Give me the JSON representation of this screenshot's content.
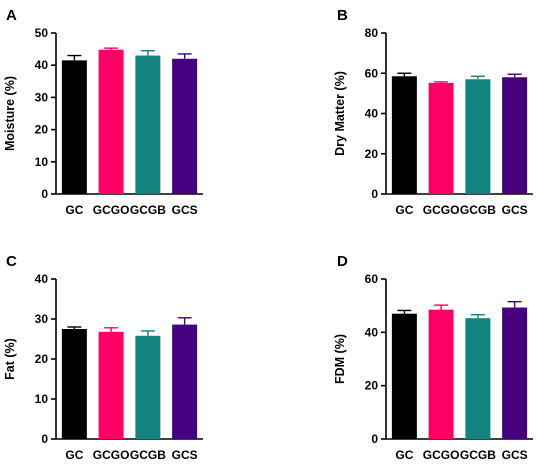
{
  "colors": {
    "GC": "#000000",
    "GCGO": "#ff0066",
    "GCGB": "#138380",
    "GCS": "#44007f",
    "axis": "#000000"
  },
  "chart_data": [
    {
      "panel": "A",
      "type": "bar",
      "categories": [
        "GC",
        "GCGO",
        "GCGB",
        "GCS"
      ],
      "values": [
        41.5,
        44.8,
        43.0,
        42.0
      ],
      "errors": [
        1.5,
        0.5,
        1.5,
        1.5
      ],
      "ylabel": "Moisture (%)",
      "ylim": [
        0,
        50
      ],
      "yticks": [
        0,
        10,
        20,
        30,
        40,
        50
      ]
    },
    {
      "panel": "B",
      "type": "bar",
      "categories": [
        "GC",
        "GCGO",
        "GCGB",
        "GCS"
      ],
      "values": [
        58.5,
        55.2,
        57.0,
        58.0
      ],
      "errors": [
        1.5,
        0.5,
        1.5,
        1.5
      ],
      "ylabel": "Dry Matter (%)",
      "ylim": [
        0,
        80
      ],
      "yticks": [
        0,
        20,
        40,
        60,
        80
      ]
    },
    {
      "panel": "C",
      "type": "bar",
      "categories": [
        "GC",
        "GCGO",
        "GCGB",
        "GCS"
      ],
      "values": [
        27.5,
        26.8,
        25.8,
        28.6
      ],
      "errors": [
        0.5,
        1.0,
        1.2,
        1.7
      ],
      "ylabel": "Fat (%)",
      "ylim": [
        0,
        40
      ],
      "yticks": [
        0,
        10,
        20,
        30,
        40
      ]
    },
    {
      "panel": "D",
      "type": "bar",
      "categories": [
        "GC",
        "GCGO",
        "GCGB",
        "GCS"
      ],
      "values": [
        47.0,
        48.5,
        45.3,
        49.3
      ],
      "errors": [
        1.2,
        1.7,
        1.3,
        2.2
      ],
      "ylabel": "FDM (%)",
      "ylim": [
        0,
        60
      ],
      "yticks": [
        0,
        20,
        40,
        60
      ]
    }
  ]
}
